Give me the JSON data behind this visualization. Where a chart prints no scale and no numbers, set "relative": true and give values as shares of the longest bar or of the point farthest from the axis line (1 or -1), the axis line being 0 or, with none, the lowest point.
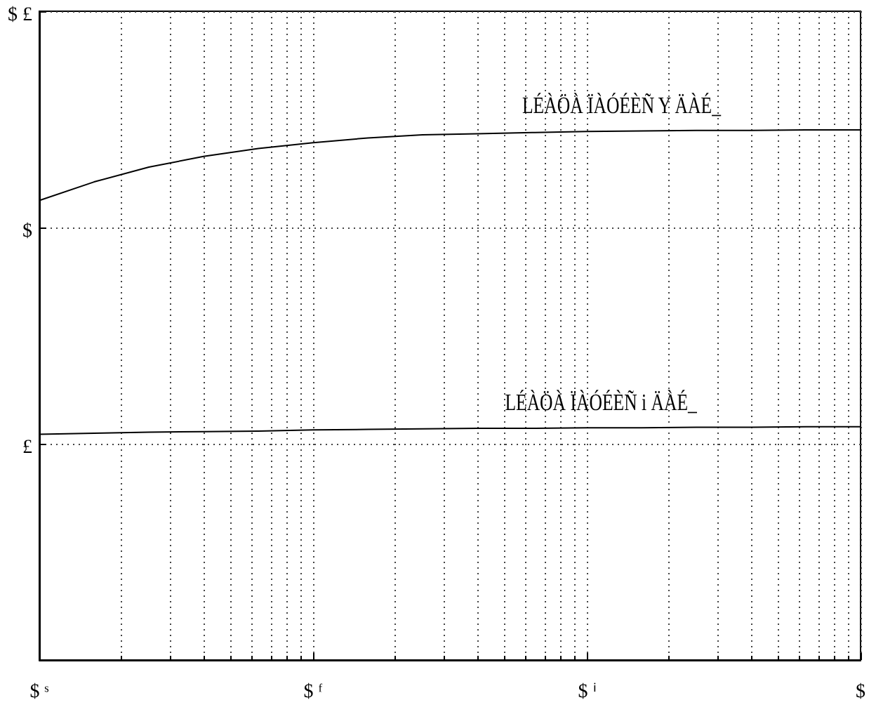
{
  "chart_data": {
    "type": "line",
    "relative": true,
    "grid": true,
    "categories": [
      "$ ˢ",
      null,
      null,
      null,
      null,
      "$ ᶠ",
      null,
      null,
      null,
      null,
      "$ ⁱ",
      null,
      null,
      null,
      null,
      "$"
    ],
    "series": [
      {
        "name": "LÉÀÖÀ ÏÀÓÉÈÑ Y ÄÀÉ_",
        "color": "#000000",
        "values": [
          0.867,
          0.902,
          0.93,
          0.95,
          0.965,
          0.976,
          0.985,
          0.991,
          0.993,
          0.995,
          0.997,
          0.998,
          0.999,
          0.999,
          1,
          1
        ]
      },
      {
        "name": "LÉÀÖÀ ÏÀÓÉÈÑ i ÄÀÉ_",
        "color": "#000000",
        "values": [
          0.426,
          0.428,
          0.43,
          0.431,
          0.432,
          0.434,
          0.435,
          0.436,
          0.437,
          0.437,
          0.438,
          0.438,
          0.439,
          0.439,
          0.44,
          0.44
        ]
      }
    ],
    "annotations": [
      "$ £",
      "$",
      "£"
    ]
  }
}
